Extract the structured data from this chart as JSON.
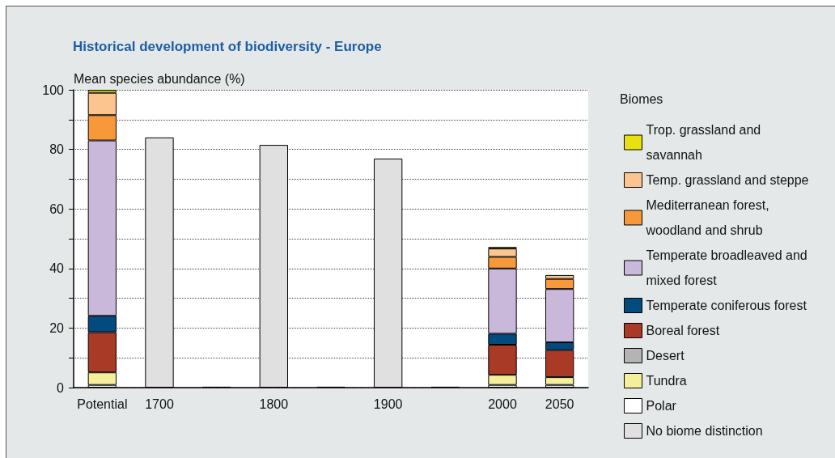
{
  "chart_data": {
    "type": "bar",
    "title": "Historical development of biodiversity - Europe",
    "ylabel": "Mean species abundance (%)",
    "legend_title": "Biomes",
    "categories": [
      "Potential",
      "1700",
      null,
      "1800",
      null,
      "1900",
      null,
      "2000",
      "2050"
    ],
    "stacked": true,
    "ylim": [
      0,
      100
    ],
    "yticks": [
      0,
      {
        "value": 10,
        "label": null
      },
      20,
      {
        "value": 30,
        "label": null
      },
      40,
      {
        "value": 50,
        "label": null
      },
      60,
      {
        "value": 70,
        "label": null
      },
      80,
      {
        "value": 90,
        "label": null
      },
      100
    ],
    "grid": "y",
    "legend": "right",
    "series": [
      {
        "name": "Polar",
        "color": "#ffffff",
        "values": [
          0.9,
          null,
          null,
          null,
          null,
          null,
          null,
          0.9,
          0.9
        ]
      },
      {
        "name": "Tundra",
        "color": "#f5ef9c",
        "values": [
          4.2,
          null,
          null,
          null,
          null,
          null,
          null,
          3.4,
          2.6
        ]
      },
      {
        "name": "Desert",
        "color": "#b4b4b4",
        "values": [
          null,
          null,
          null,
          null,
          null,
          null,
          null,
          null,
          null
        ]
      },
      {
        "name": "Boreal forest",
        "color": "#a83a26",
        "values": [
          13.5,
          null,
          null,
          null,
          null,
          null,
          null,
          10.1,
          9.1
        ]
      },
      {
        "name": "Temperate coniferous forest",
        "color": "#034b7f",
        "values": [
          5.5,
          null,
          null,
          null,
          null,
          null,
          null,
          3.7,
          2.6
        ]
      },
      {
        "name": "Temperate broadleaved and mixed forest",
        "color": "#c9b8da",
        "values": [
          58.9,
          null,
          null,
          null,
          null,
          null,
          null,
          21.9,
          17.9
        ]
      },
      {
        "name": "Mediterranean forest, woodland and shrub",
        "color": "#f7993a",
        "values": [
          8.5,
          null,
          null,
          null,
          null,
          null,
          null,
          3.9,
          3.4
        ]
      },
      {
        "name": "Temp. grassland and steppe",
        "color": "#fcc58f",
        "values": [
          7.5,
          null,
          null,
          null,
          null,
          null,
          null,
          2.8,
          1.3
        ]
      },
      {
        "name": "Trop. grassland and savannah",
        "color": "#e8e010",
        "values": [
          1.0,
          null,
          null,
          null,
          null,
          null,
          null,
          0.5,
          null
        ]
      },
      {
        "name": "No biome distinction",
        "color": "#e0e0e0",
        "values": [
          null,
          84.0,
          0.3,
          81.5,
          0.3,
          76.9,
          0.3,
          null,
          null
        ]
      }
    ]
  }
}
